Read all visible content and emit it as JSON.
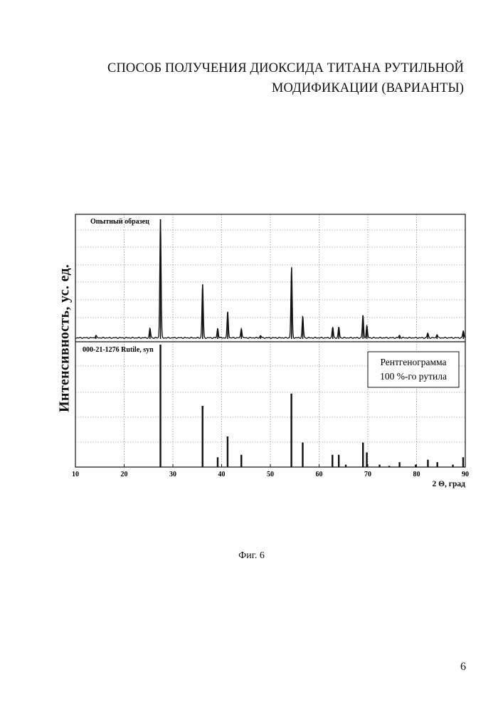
{
  "document": {
    "title_line1": "СПОСОБ ПОЛУЧЕНИЯ ДИОКСИДА ТИТАНА РУТИЛЬНОЙ",
    "title_line2": "МОДИФИКАЦИИ (ВАРИАНТЫ)",
    "figure_caption": "Фиг. 6",
    "page_number": "6"
  },
  "chart_data": {
    "type": "line",
    "ylabel": "Интенсивность, ус. ед.",
    "xlabel": "2 Θ, град",
    "xlim": [
      10,
      90
    ],
    "x_ticks": [
      "10",
      "20",
      "30",
      "40",
      "50",
      "60",
      "70",
      "80",
      "90"
    ],
    "grid": true,
    "legend_box": [
      "Рентгенограмма",
      "100 %-го рутила"
    ],
    "panels": [
      {
        "name": "Опытный образец",
        "kind": "pattern",
        "ylim": [
          0,
          100
        ],
        "peaks": [
          {
            "x": 27.45,
            "y": 100
          },
          {
            "x": 36.1,
            "y": 45
          },
          {
            "x": 41.25,
            "y": 22
          },
          {
            "x": 54.35,
            "y": 59
          },
          {
            "x": 56.65,
            "y": 18
          },
          {
            "x": 69.0,
            "y": 19
          },
          {
            "x": 39.2,
            "y": 8
          },
          {
            "x": 44.05,
            "y": 8
          },
          {
            "x": 62.8,
            "y": 9
          },
          {
            "x": 64.05,
            "y": 9
          },
          {
            "x": 69.8,
            "y": 10
          },
          {
            "x": 25.3,
            "y": 8
          },
          {
            "x": 82.3,
            "y": 4
          },
          {
            "x": 84.2,
            "y": 3
          },
          {
            "x": 89.6,
            "y": 6
          },
          {
            "x": 48.0,
            "y": 2
          },
          {
            "x": 14.2,
            "y": 2
          },
          {
            "x": 76.5,
            "y": 2
          }
        ]
      },
      {
        "name": "000-21-1276 Rutile, syn",
        "kind": "sticks",
        "ylim": [
          0,
          100
        ],
        "peaks": [
          {
            "x": 27.45,
            "y": 100
          },
          {
            "x": 36.09,
            "y": 50
          },
          {
            "x": 39.19,
            "y": 8
          },
          {
            "x": 41.23,
            "y": 25
          },
          {
            "x": 44.05,
            "y": 10
          },
          {
            "x": 54.32,
            "y": 60
          },
          {
            "x": 56.64,
            "y": 20
          },
          {
            "x": 62.74,
            "y": 10
          },
          {
            "x": 64.04,
            "y": 10
          },
          {
            "x": 65.48,
            "y": 2
          },
          {
            "x": 69.01,
            "y": 20
          },
          {
            "x": 69.79,
            "y": 12
          },
          {
            "x": 72.41,
            "y": 2
          },
          {
            "x": 74.41,
            "y": 1
          },
          {
            "x": 76.51,
            "y": 4
          },
          {
            "x": 79.82,
            "y": 2
          },
          {
            "x": 82.33,
            "y": 6
          },
          {
            "x": 84.26,
            "y": 4
          },
          {
            "x": 87.46,
            "y": 2
          },
          {
            "x": 89.56,
            "y": 8
          }
        ]
      }
    ]
  }
}
